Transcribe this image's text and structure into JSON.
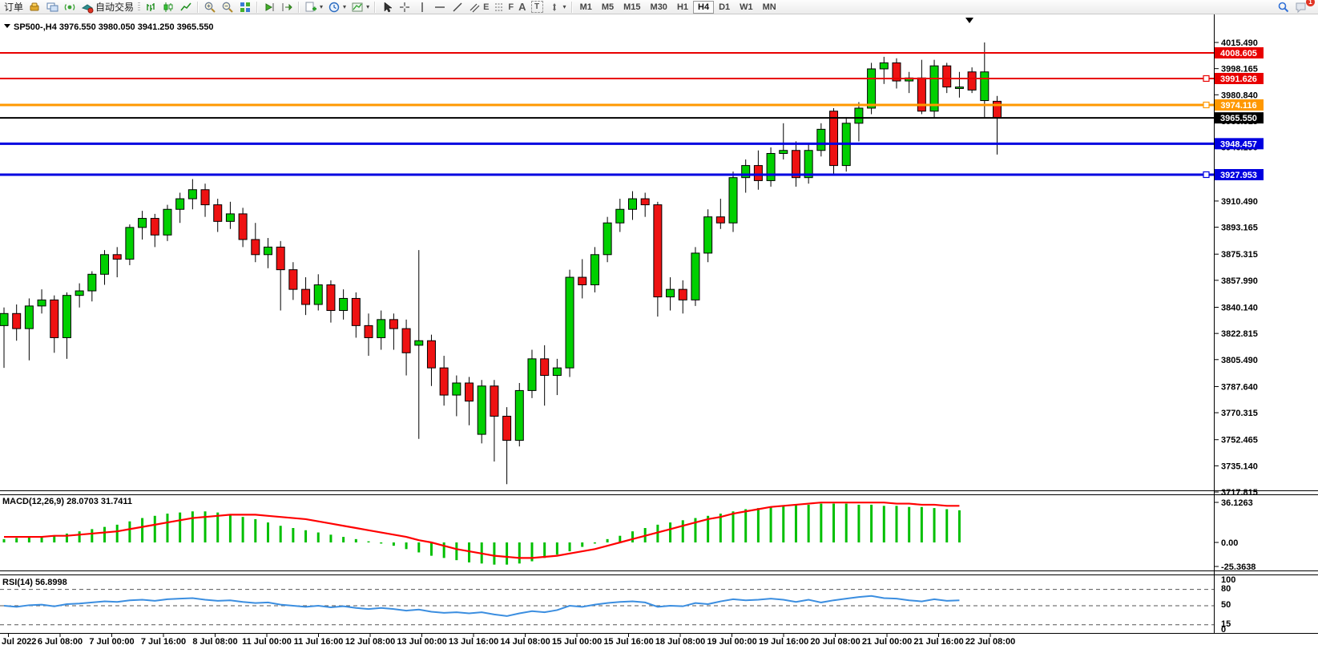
{
  "toolbar": {
    "order_label": "订单",
    "autotrade_label": "自动交易",
    "glyphs": {
      "e": "E",
      "f": "F",
      "a": "A",
      "t": "T"
    },
    "timeframes": [
      {
        "label": "M1"
      },
      {
        "label": "M5"
      },
      {
        "label": "M15"
      },
      {
        "label": "M30"
      },
      {
        "label": "H1"
      },
      {
        "label": "H4"
      },
      {
        "label": "D1"
      },
      {
        "label": "W1"
      },
      {
        "label": "MN"
      }
    ],
    "active_timeframe": "H4",
    "notification_count": "1"
  },
  "colors": {
    "bull": "#00d000",
    "bear": "#ee1212",
    "outline": "#000000",
    "macd_hist": "#00bf00",
    "macd_signal": "#ff0000",
    "rsi_line": "#3b8ee0",
    "level_red": "#e80000",
    "level_orange": "#ff9800",
    "level_blue": "#0000e0",
    "level_black": "#000000"
  },
  "chart": {
    "symbol_label": "SP500-,H4",
    "ohlc_label": "3976.550 3980.050 3941.250 3965.550",
    "price_ticks": [
      "4015.490",
      "3998.165",
      "3980.840",
      "3963.515",
      "3946.190",
      "3928.865",
      "3910.490",
      "3893.165",
      "3875.315",
      "3857.990",
      "3840.140",
      "3822.815",
      "3805.490",
      "3787.640",
      "3770.315",
      "3752.465",
      "3735.140",
      "3717.815"
    ],
    "levels": [
      {
        "price": 4008.605,
        "label": "4008.605",
        "color": "#e80000",
        "width": 2,
        "marker": false
      },
      {
        "price": 3991.626,
        "label": "3991.626",
        "color": "#e80000",
        "width": 2,
        "marker": true
      },
      {
        "price": 3974.116,
        "label": "3974.116",
        "color": "#ff9800",
        "width": 3,
        "marker": true
      },
      {
        "price": 3965.55,
        "label": "3965.550",
        "color": "#000000",
        "width": 2,
        "marker": false
      },
      {
        "price": 3948.457,
        "label": "3948.457",
        "color": "#0000e0",
        "width": 3,
        "marker": false
      },
      {
        "price": 3927.953,
        "label": "3927.953",
        "color": "#0000e0",
        "width": 3,
        "marker": true
      }
    ],
    "time_labels": [
      "Jul 2022",
      "6 Jul 08:00",
      "7 Jul 00:00",
      "7 Jul 16:00",
      "8 Jul 08:00",
      "11 Jul 00:00",
      "11 Jul 16:00",
      "12 Jul 08:00",
      "13 Jul 00:00",
      "13 Jul 16:00",
      "14 Jul 08:00",
      "15 Jul 00:00",
      "15 Jul 16:00",
      "18 Jul 08:00",
      "19 Jul 00:00",
      "19 Jul 16:00",
      "20 Jul 08:00",
      "21 Jul 00:00",
      "21 Jul 16:00",
      "22 Jul 08:00"
    ]
  },
  "macd": {
    "label": "MACD(12,26,9) 28.0703 31.7411",
    "axis": [
      "36.1263",
      "0.00",
      "-25.3638"
    ]
  },
  "rsi": {
    "label": "RSI(14) 56.8998",
    "axis": [
      "100",
      "80",
      "50",
      "15",
      "0"
    ],
    "level_values": [
      80,
      50,
      15
    ]
  },
  "chart_data": [
    {
      "type": "candlestick",
      "title": "SP500-,H4",
      "ylim": [
        3717.815,
        4015.49
      ],
      "ohlc": [
        [
          3828,
          3840,
          3800,
          3836
        ],
        [
          3836,
          3842,
          3818,
          3826
        ],
        [
          3826,
          3846,
          3805,
          3841
        ],
        [
          3841,
          3852,
          3836,
          3845
        ],
        [
          3845,
          3848,
          3810,
          3820
        ],
        [
          3820,
          3850,
          3806,
          3848
        ],
        [
          3848,
          3856,
          3840,
          3851
        ],
        [
          3851,
          3864,
          3844,
          3862
        ],
        [
          3862,
          3878,
          3855,
          3875
        ],
        [
          3875,
          3880,
          3860,
          3872
        ],
        [
          3872,
          3895,
          3868,
          3893
        ],
        [
          3893,
          3904,
          3885,
          3899
        ],
        [
          3899,
          3902,
          3880,
          3888
        ],
        [
          3888,
          3908,
          3884,
          3905
        ],
        [
          3905,
          3916,
          3896,
          3912
        ],
        [
          3912,
          3925,
          3905,
          3918
        ],
        [
          3918,
          3922,
          3900,
          3908
        ],
        [
          3908,
          3912,
          3890,
          3897
        ],
        [
          3897,
          3910,
          3892,
          3902
        ],
        [
          3902,
          3906,
          3880,
          3885
        ],
        [
          3885,
          3896,
          3870,
          3875
        ],
        [
          3875,
          3886,
          3866,
          3880
        ],
        [
          3880,
          3884,
          3838,
          3865
        ],
        [
          3865,
          3870,
          3845,
          3852
        ],
        [
          3852,
          3860,
          3835,
          3842
        ],
        [
          3842,
          3862,
          3838,
          3855
        ],
        [
          3855,
          3858,
          3830,
          3838
        ],
        [
          3838,
          3852,
          3832,
          3846
        ],
        [
          3846,
          3850,
          3820,
          3828
        ],
        [
          3828,
          3836,
          3808,
          3820
        ],
        [
          3820,
          3838,
          3812,
          3832
        ],
        [
          3832,
          3836,
          3812,
          3826
        ],
        [
          3826,
          3832,
          3795,
          3810
        ],
        [
          3815,
          3878,
          3753,
          3818
        ],
        [
          3818,
          3822,
          3788,
          3800
        ],
        [
          3800,
          3808,
          3775,
          3782
        ],
        [
          3782,
          3795,
          3768,
          3790
        ],
        [
          3790,
          3794,
          3762,
          3778
        ],
        [
          3756,
          3792,
          3750,
          3788
        ],
        [
          3788,
          3792,
          3738,
          3768
        ],
        [
          3768,
          3774,
          3723,
          3752
        ],
        [
          3752,
          3790,
          3748,
          3785
        ],
        [
          3785,
          3812,
          3780,
          3806
        ],
        [
          3806,
          3815,
          3775,
          3795
        ],
        [
          3795,
          3806,
          3782,
          3800
        ],
        [
          3800,
          3865,
          3794,
          3860
        ],
        [
          3860,
          3872,
          3846,
          3855
        ],
        [
          3855,
          3880,
          3850,
          3875
        ],
        [
          3875,
          3900,
          3870,
          3896
        ],
        [
          3896,
          3912,
          3890,
          3905
        ],
        [
          3905,
          3917,
          3898,
          3912
        ],
        [
          3912,
          3916,
          3900,
          3908
        ],
        [
          3908,
          3910,
          3834,
          3847
        ],
        [
          3847,
          3860,
          3838,
          3852
        ],
        [
          3852,
          3858,
          3836,
          3845
        ],
        [
          3845,
          3880,
          3841,
          3876
        ],
        [
          3876,
          3905,
          3870,
          3900
        ],
        [
          3900,
          3912,
          3892,
          3896
        ],
        [
          3896,
          3930,
          3890,
          3926
        ],
        [
          3926,
          3938,
          3916,
          3934
        ],
        [
          3934,
          3944,
          3918,
          3924
        ],
        [
          3924,
          3946,
          3920,
          3942
        ],
        [
          3942,
          3962,
          3938,
          3944
        ],
        [
          3944,
          3950,
          3920,
          3926
        ],
        [
          3926,
          3948,
          3922,
          3944
        ],
        [
          3944,
          3962,
          3940,
          3958
        ],
        [
          3970,
          3972,
          3928,
          3934
        ],
        [
          3934,
          3966,
          3930,
          3962
        ],
        [
          3962,
          3976,
          3950,
          3972
        ],
        [
          3972,
          4002,
          3968,
          3998
        ],
        [
          3998,
          4006,
          3988,
          4002
        ],
        [
          4002,
          4005,
          3985,
          3990
        ],
        [
          3990,
          3996,
          3982,
          3992
        ],
        [
          3992,
          4004,
          3968,
          3970
        ],
        [
          3970,
          4004,
          3966,
          4000
        ],
        [
          4000,
          4002,
          3982,
          3986
        ],
        [
          3985,
          3996,
          3979,
          3986
        ],
        [
          3996,
          3999,
          3982,
          3984
        ],
        [
          3977,
          4015.5,
          3966,
          3996
        ],
        [
          3976.55,
          3980.05,
          3941.25,
          3965.55
        ]
      ]
    },
    {
      "type": "bar",
      "name": "MACD(12,26,9)",
      "current_values": [
        28.0703,
        31.7411
      ],
      "ylim": [
        -25.3638,
        36.1263
      ],
      "histogram": [
        3,
        4,
        5,
        5,
        6,
        8,
        10,
        12,
        14,
        16,
        19,
        22,
        24,
        26,
        27,
        28,
        28,
        27,
        25,
        23,
        21,
        18,
        15,
        13,
        11,
        9,
        7,
        5,
        3,
        1,
        -1,
        -3,
        -6,
        -9,
        -12,
        -14,
        -16,
        -18,
        -19,
        -20,
        -20,
        -19,
        -17,
        -14,
        -11,
        -8,
        -4,
        -1,
        3,
        6,
        10,
        13,
        16,
        18,
        20,
        22,
        24,
        26,
        28,
        30,
        31,
        32,
        33,
        34,
        34,
        35,
        35,
        35,
        34,
        34,
        33,
        33,
        32,
        32,
        31,
        30,
        29,
        28,
        28,
        28.07
      ],
      "signal": [
        5,
        5,
        5,
        5,
        6,
        6,
        7,
        8,
        9,
        10,
        12,
        14,
        16,
        18,
        20,
        22,
        23,
        24,
        25,
        25,
        25,
        24,
        23,
        22,
        21,
        19,
        17,
        15,
        13,
        11,
        9,
        7,
        5,
        2,
        0,
        -3,
        -6,
        -8,
        -10,
        -12,
        -13,
        -14,
        -14,
        -13,
        -12,
        -10,
        -8,
        -6,
        -3,
        0,
        3,
        6,
        9,
        12,
        15,
        18,
        21,
        23,
        26,
        28,
        30,
        32,
        33,
        34,
        35,
        36,
        36,
        36,
        36,
        36,
        36,
        35,
        35,
        34,
        34,
        33,
        33,
        32,
        32,
        31.74
      ]
    },
    {
      "type": "line",
      "name": "RSI(14)",
      "current_value": 56.8998,
      "ylim": [
        0,
        100
      ],
      "levels": [
        80,
        50,
        15
      ],
      "values": [
        50,
        48,
        51,
        52,
        49,
        53,
        54,
        56,
        58,
        57,
        60,
        61,
        59,
        62,
        63,
        64,
        61,
        59,
        60,
        57,
        55,
        56,
        52,
        50,
        48,
        50,
        47,
        49,
        46,
        44,
        46,
        44,
        41,
        43,
        39,
        37,
        38,
        36,
        38,
        34,
        31,
        36,
        40,
        38,
        42,
        50,
        48,
        52,
        55,
        57,
        58,
        56,
        48,
        50,
        49,
        55,
        53,
        58,
        62,
        60,
        61,
        63,
        61,
        57,
        61,
        56,
        60,
        63,
        66,
        68,
        64,
        63,
        60,
        58,
        62,
        59,
        60,
        62,
        66,
        56.9
      ]
    }
  ]
}
